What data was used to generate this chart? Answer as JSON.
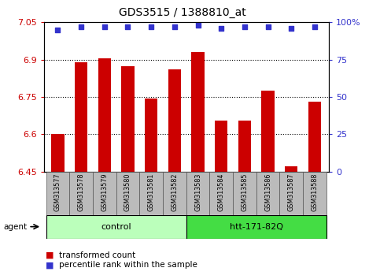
{
  "title": "GDS3515 / 1388810_at",
  "samples": [
    "GSM313577",
    "GSM313578",
    "GSM313579",
    "GSM313580",
    "GSM313581",
    "GSM313582",
    "GSM313583",
    "GSM313584",
    "GSM313585",
    "GSM313586",
    "GSM313587",
    "GSM313588"
  ],
  "bar_values": [
    6.6,
    6.89,
    6.905,
    6.875,
    6.745,
    6.86,
    6.93,
    6.655,
    6.655,
    6.775,
    6.47,
    6.73
  ],
  "percentile_values": [
    95,
    97,
    97,
    97,
    97,
    97,
    98,
    96,
    97,
    97,
    96,
    97
  ],
  "percentile_scale_max": 100,
  "ymin": 6.45,
  "ymax": 7.05,
  "yticks": [
    6.45,
    6.6,
    6.75,
    6.9,
    7.05
  ],
  "ytick_labels": [
    "6.45",
    "6.6",
    "6.75",
    "6.9",
    "7.05"
  ],
  "right_yticks": [
    0,
    25,
    50,
    75,
    100
  ],
  "right_ytick_labels": [
    "0",
    "25",
    "50",
    "75",
    "100%"
  ],
  "hlines": [
    6.6,
    6.75,
    6.9
  ],
  "bar_color": "#cc0000",
  "dot_color": "#3333cc",
  "bar_width": 0.55,
  "groups": [
    {
      "label": "control",
      "start": 0,
      "end": 5,
      "color": "#bbffbb"
    },
    {
      "label": "htt-171-82Q",
      "start": 6,
      "end": 11,
      "color": "#44dd44"
    }
  ],
  "agent_label": "agent",
  "legend_bar_label": "transformed count",
  "legend_dot_label": "percentile rank within the sample",
  "axis_color_left": "#cc0000",
  "axis_color_right": "#3333cc",
  "bg_color": "#ffffff",
  "plot_bg": "#ffffff",
  "tick_bg": "#bbbbbb"
}
